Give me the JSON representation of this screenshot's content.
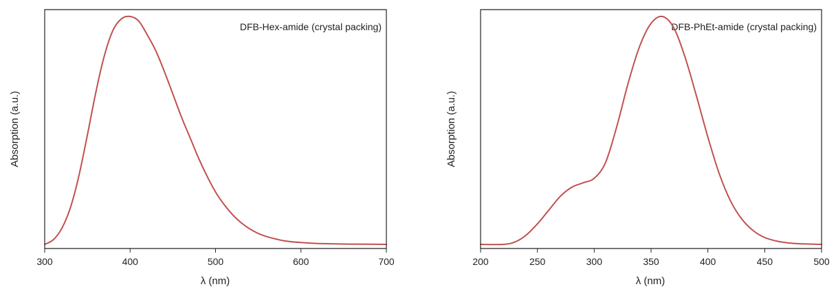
{
  "chart_data": [
    {
      "type": "line",
      "title": "DFB-Hex-amide (crystal packing)",
      "xlabel": "λ (nm)",
      "ylabel": "Absorption (a.u.)",
      "xlim": [
        300,
        700
      ],
      "ylim": [
        0,
        1
      ],
      "xticks": [
        "300",
        "400",
        "500",
        "600",
        "700"
      ],
      "color": "#c0504d",
      "series": [
        {
          "x": [
            300,
            310,
            320,
            330,
            340,
            350,
            360,
            370,
            380,
            390,
            400,
            410,
            420,
            430,
            440,
            450,
            460,
            470,
            480,
            490,
            500,
            510,
            520,
            530,
            540,
            550,
            560,
            570,
            580,
            600,
            620,
            650,
            680,
            700
          ],
          "values": [
            0.0,
            0.02,
            0.07,
            0.16,
            0.3,
            0.48,
            0.67,
            0.83,
            0.94,
            0.99,
            1.0,
            0.98,
            0.92,
            0.85,
            0.76,
            0.66,
            0.56,
            0.47,
            0.38,
            0.3,
            0.23,
            0.175,
            0.13,
            0.095,
            0.068,
            0.048,
            0.034,
            0.024,
            0.016,
            0.008,
            0.004,
            0.0015,
            0.0005,
            0.0
          ]
        }
      ]
    },
    {
      "type": "line",
      "title": "DFB-PhEt-amide (crystal packing)",
      "xlabel": "λ (nm)",
      "ylabel": "Absorption (a.u.)",
      "xlim": [
        200,
        500
      ],
      "ylim": [
        0,
        1
      ],
      "xticks": [
        "200",
        "250",
        "300",
        "350",
        "400",
        "450",
        "500"
      ],
      "color": "#c0504d",
      "series": [
        {
          "x": [
            200,
            220,
            230,
            240,
            250,
            260,
            270,
            280,
            290,
            300,
            310,
            320,
            330,
            340,
            350,
            360,
            370,
            380,
            390,
            400,
            410,
            420,
            430,
            440,
            450,
            460,
            470,
            480,
            500
          ],
          "values": [
            0.0,
            0.0,
            0.01,
            0.04,
            0.09,
            0.15,
            0.21,
            0.25,
            0.27,
            0.29,
            0.36,
            0.52,
            0.71,
            0.87,
            0.97,
            1.0,
            0.95,
            0.82,
            0.65,
            0.47,
            0.31,
            0.19,
            0.11,
            0.06,
            0.03,
            0.015,
            0.007,
            0.003,
            0.0
          ]
        }
      ]
    }
  ]
}
